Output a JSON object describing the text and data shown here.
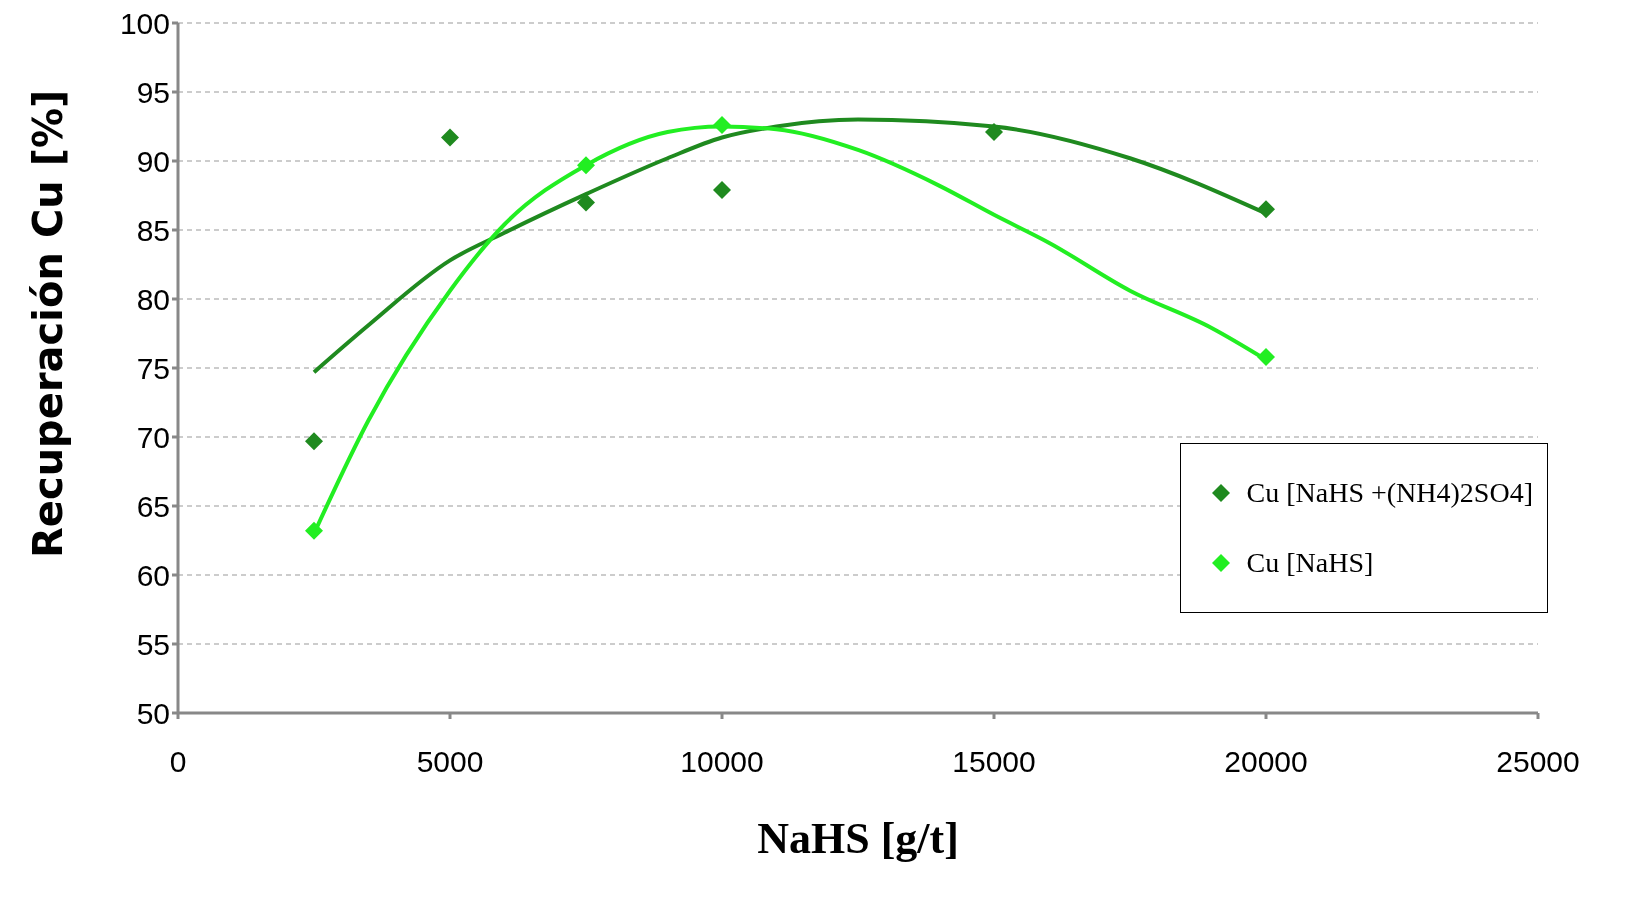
{
  "chart_data": {
    "type": "scatter",
    "xlabel": "NaHS  [g/t]",
    "ylabel": "Recuperación Cu [%]",
    "xlim": [
      0,
      25000
    ],
    "xticks": [
      0,
      5000,
      10000,
      15000,
      20000,
      25000
    ],
    "ylim": [
      50,
      100
    ],
    "yticks": [
      50,
      55,
      60,
      65,
      70,
      75,
      80,
      85,
      90,
      95,
      100
    ],
    "grid": "y",
    "legend": "bottom right",
    "series": [
      {
        "name": "Cu [NaHS +(NH4)2SO4]",
        "marker": "diamond",
        "color": "#1f8a1f",
        "x": [
          2500,
          5000,
          7500,
          10000,
          15000,
          20000
        ],
        "values": [
          69.7,
          91.7,
          87.0,
          87.9,
          92.1,
          86.5
        ]
      },
      {
        "name": "Cu [NaHS]",
        "marker": "diamond",
        "color": "#22ee22",
        "x": [
          2500,
          7500,
          10000,
          20000
        ],
        "values": [
          63.2,
          89.7,
          92.6,
          75.8
        ]
      },
      {
        "type": "line",
        "marker": "none",
        "color": "#1f8a1f",
        "x": [
          2500,
          3500,
          5000,
          6000,
          7500,
          9000,
          10000,
          11000,
          12500,
          15000,
          17500,
          20000
        ],
        "values": [
          74.7,
          78.1,
          82.8,
          84.8,
          87.6,
          90.2,
          91.7,
          92.5,
          93.0,
          92.5,
          90.2,
          86.2
        ]
      },
      {
        "type": "line",
        "marker": "none",
        "color": "#22ee22",
        "x": [
          2500,
          3500,
          5000,
          6000,
          7500,
          9000,
          10000,
          11000,
          12500,
          14000,
          15000,
          16000,
          17500,
          19000,
          20000
        ],
        "values": [
          63.0,
          71.2,
          80.6,
          85.4,
          89.7,
          92.1,
          92.5,
          92.3,
          90.8,
          88.2,
          86.1,
          84.1,
          80.6,
          77.9,
          75.6
        ]
      }
    ]
  }
}
